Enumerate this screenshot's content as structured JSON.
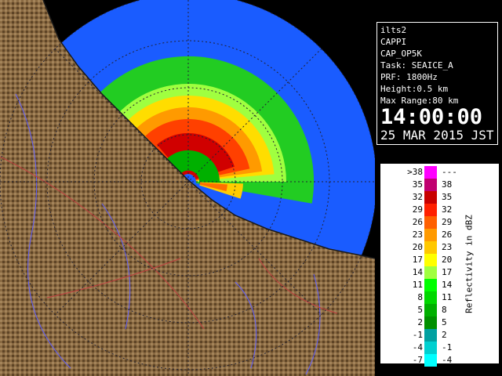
{
  "info": {
    "station": "ilts2",
    "product": "CAPPI",
    "product_id": "CAP_OP5K",
    "task": "Task: SEAICE_A",
    "prf": "PRF: 1800Hz",
    "height": "Height:0.5 km",
    "max_range": "Max Range:80 km",
    "time": "14:00:00",
    "date": "25 MAR 2015 JST"
  },
  "legend": {
    "unit": "Reflectivity in dBZ",
    "rows": [
      {
        "low": ">38",
        "high": "---",
        "color": "#ff00ff"
      },
      {
        "low": "35",
        "high": "38",
        "color": "#c00070"
      },
      {
        "low": "32",
        "high": "35",
        "color": "#c80000"
      },
      {
        "low": "29",
        "high": "32",
        "color": "#ff2000"
      },
      {
        "low": "26",
        "high": "29",
        "color": "#ff6000"
      },
      {
        "low": "23",
        "high": "26",
        "color": "#ff9a00"
      },
      {
        "low": "20",
        "high": "23",
        "color": "#ffc800"
      },
      {
        "low": "17",
        "high": "20",
        "color": "#ffff00"
      },
      {
        "low": "14",
        "high": "17",
        "color": "#a0ff40"
      },
      {
        "low": "11",
        "high": "14",
        "color": "#00ff00"
      },
      {
        "low": "8",
        "high": "11",
        "color": "#00d800"
      },
      {
        "low": "5",
        "high": "8",
        "color": "#00b000"
      },
      {
        "low": "2",
        "high": "5",
        "color": "#009000"
      },
      {
        "low": "-1",
        "high": "2",
        "color": "#00a0a0"
      },
      {
        "low": "-4",
        "high": "-1",
        "color": "#00d0d0"
      },
      {
        "low": "-7",
        "high": "-4",
        "color": "#00ffff"
      }
    ]
  }
}
